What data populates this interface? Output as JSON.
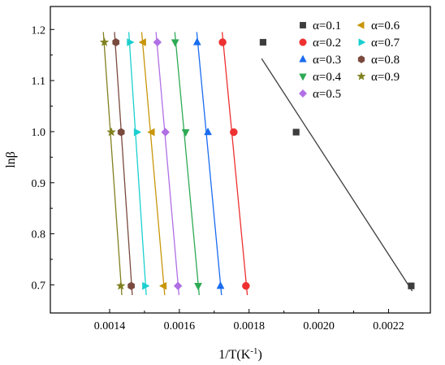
{
  "chart_data": {
    "type": "scatter",
    "title": "",
    "xlabel": "1/T(K",
    "xlabel_sup": "-1",
    "xlabel_end": ")",
    "ylabel": "lnβ",
    "xlim": [
      0.00123,
      0.00232
    ],
    "ylim": [
      0.645,
      1.245
    ],
    "x_ticks": [
      0.0014,
      0.0016,
      0.0018,
      0.002,
      0.0022
    ],
    "x_tick_labels": [
      "0.0014",
      "0.0016",
      "0.0018",
      "0.0020",
      "0.0022"
    ],
    "y_ticks": [
      0.7,
      0.8,
      0.9,
      1.0,
      1.1,
      1.2
    ],
    "y_tick_labels": [
      "0.7",
      "0.8",
      "0.9",
      "1.0",
      "1.1",
      "1.2"
    ],
    "grid": false,
    "legend_position": "top-right",
    "y_values": [
      0.698,
      0.999,
      1.175
    ],
    "series": [
      {
        "name": "α=0.1",
        "color": "#3d3d3d",
        "marker": "square",
        "x": [
          0.002265,
          0.001935,
          0.00184
        ],
        "y": [
          0.698,
          0.999,
          1.175
        ],
        "fit_x": [
          0.001836,
          0.002268
        ],
        "fit_y": [
          1.143,
          0.688
        ]
      },
      {
        "name": "α=0.2",
        "color": "#ee3030",
        "marker": "circle",
        "x": [
          0.001791,
          0.001756,
          0.001724
        ],
        "y": [
          0.698,
          0.999,
          1.175
        ],
        "fit_x": [
          0.001795,
          0.001723
        ],
        "fit_y": [
          0.68,
          1.195
        ]
      },
      {
        "name": "α=0.3",
        "color": "#1a6cf0",
        "marker": "triangle-up",
        "x": [
          0.001718,
          0.001682,
          0.001651
        ],
        "y": [
          0.698,
          0.999,
          1.175
        ],
        "fit_x": [
          0.001721,
          0.00165
        ],
        "fit_y": [
          0.68,
          1.195
        ]
      },
      {
        "name": "α=0.4",
        "color": "#2eaa55",
        "marker": "triangle-down",
        "x": [
          0.001654,
          0.001618,
          0.001588
        ],
        "y": [
          0.698,
          0.999,
          1.175
        ],
        "fit_x": [
          0.001657,
          0.001587
        ],
        "fit_y": [
          0.68,
          1.195
        ]
      },
      {
        "name": "α=0.5",
        "color": "#b06fe5",
        "marker": "diamond",
        "x": [
          0.001596,
          0.00156,
          0.001537
        ],
        "y": [
          0.698,
          0.999,
          1.175
        ],
        "fit_x": [
          0.001599,
          0.001533
        ],
        "fit_y": [
          0.68,
          1.195
        ]
      },
      {
        "name": "α=0.6",
        "color": "#c8960a",
        "marker": "triangle-left",
        "x": [
          0.001555,
          0.001521,
          0.001496
        ],
        "y": [
          0.698,
          0.999,
          1.175
        ],
        "fit_x": [
          0.001558,
          0.001492
        ],
        "fit_y": [
          0.68,
          1.195
        ]
      },
      {
        "name": "α=0.7",
        "color": "#1ccfcf",
        "marker": "triangle-right",
        "x": [
          0.001502,
          0.001478,
          0.001458
        ],
        "y": [
          0.698,
          0.999,
          1.175
        ],
        "fit_x": [
          0.001505,
          0.001455
        ],
        "fit_y": [
          0.68,
          1.195
        ]
      },
      {
        "name": "α=0.8",
        "color": "#7a4a3e",
        "marker": "hexagon",
        "x": [
          0.001462,
          0.001433,
          0.001418
        ],
        "y": [
          0.698,
          0.999,
          1.175
        ],
        "fit_x": [
          0.001465,
          0.001414
        ],
        "fit_y": [
          0.68,
          1.195
        ]
      },
      {
        "name": "α=0.9",
        "color": "#808020",
        "marker": "star",
        "x": [
          0.001432,
          0.001405,
          0.001385
        ],
        "y": [
          0.698,
          0.999,
          1.175
        ],
        "fit_x": [
          0.001435,
          0.001382
        ],
        "fit_y": [
          0.68,
          1.195
        ]
      }
    ]
  }
}
